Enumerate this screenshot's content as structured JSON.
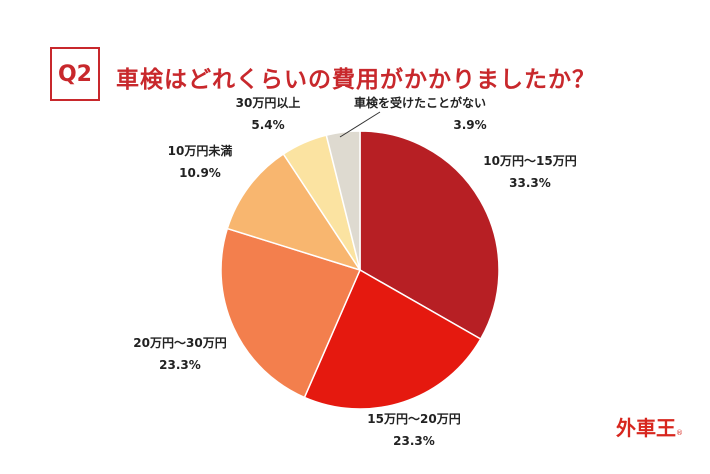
{
  "header": {
    "q_label": "Q2",
    "title": "車検はどれくらいの費用がかかりましたか？"
  },
  "logo": {
    "text": "外車王",
    "mark": "®"
  },
  "chart_data": {
    "type": "pie",
    "title": "車検はどれくらいの費用がかかりましたか？",
    "start": "top",
    "direction": "clockwise",
    "slices": [
      {
        "label": "10万円〜15万円",
        "value": 33.3,
        "display": "33.3%",
        "color": "#b71f24"
      },
      {
        "label": "15万円〜20万円",
        "value": 23.3,
        "display": "23.3%",
        "color": "#e5190f"
      },
      {
        "label": "20万円〜30万円",
        "value": 23.3,
        "display": "23.3%",
        "color": "#f37f4d"
      },
      {
        "label": "10万円未満",
        "value": 10.9,
        "display": "10.9%",
        "color": "#f8b66f"
      },
      {
        "label": "30万円以上",
        "value": 5.4,
        "display": "5.4%",
        "color": "#fbe3a1"
      },
      {
        "label": "車検を受けたことがない",
        "value": 3.9,
        "display": "3.9%",
        "color": "#dedad0"
      }
    ]
  }
}
